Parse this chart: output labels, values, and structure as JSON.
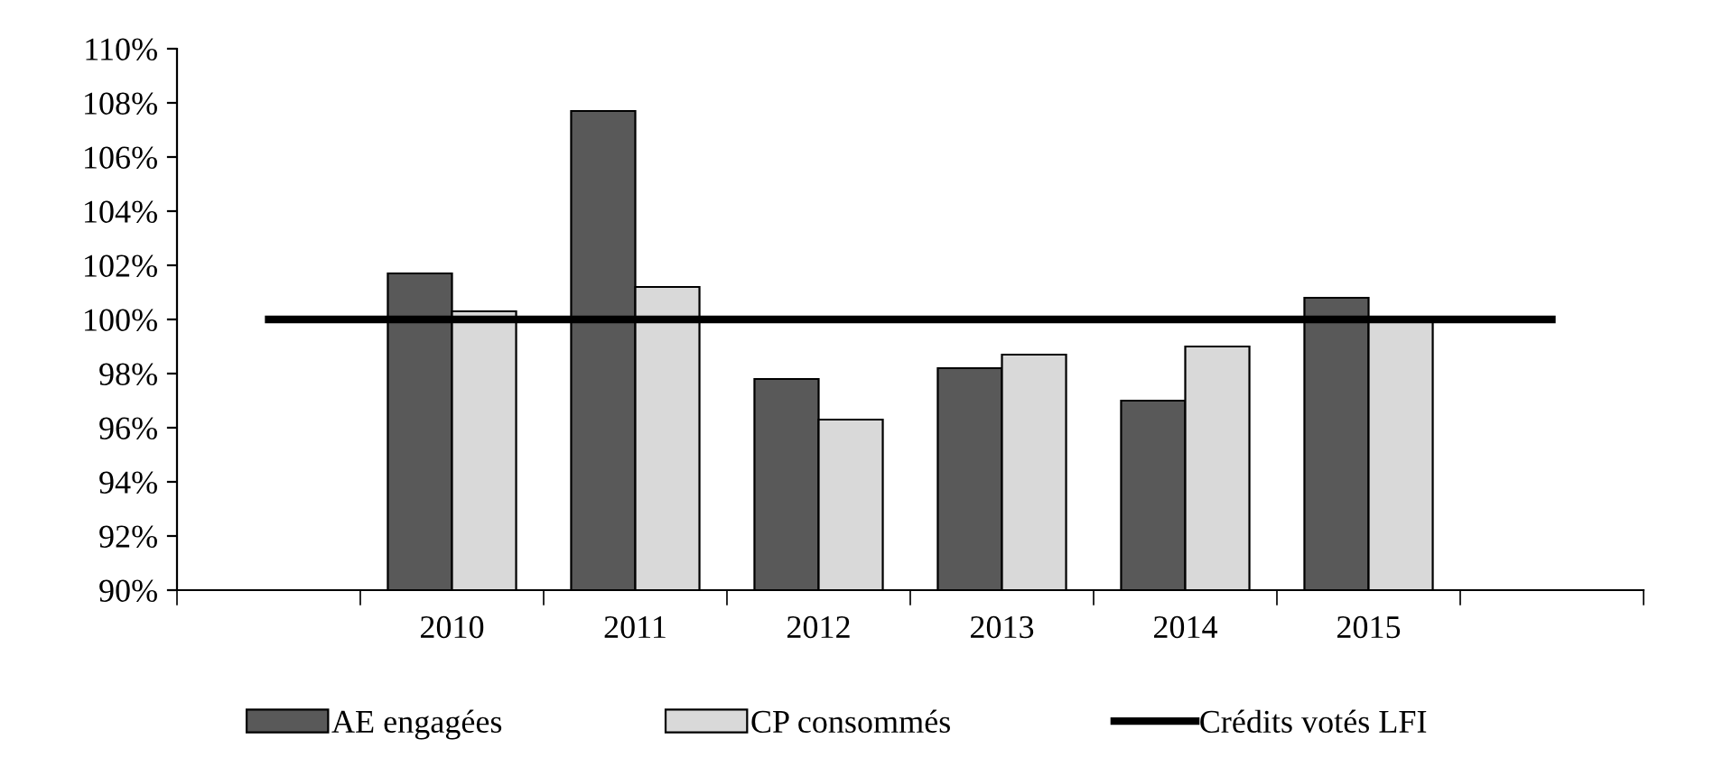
{
  "chart_data": {
    "type": "bar",
    "categories": [
      null,
      "2010",
      "2011",
      "2012",
      "2013",
      "2014",
      "2015",
      null
    ],
    "series": [
      {
        "name": "AE engagées",
        "color": "#595959",
        "values": [
          null,
          101.7,
          107.7,
          97.8,
          98.2,
          97.0,
          100.8,
          null
        ]
      },
      {
        "name": "CP consommés",
        "color": "#d9d9d9",
        "values": [
          null,
          100.3,
          101.2,
          96.3,
          98.7,
          99.0,
          100.0,
          null
        ]
      },
      {
        "name": "Crédits votés LFI",
        "type": "line",
        "color": "#000000",
        "values": [
          100,
          100,
          100,
          100,
          100,
          100,
          100,
          100
        ]
      }
    ],
    "ylim": [
      90,
      110
    ],
    "yticks": [
      {
        "value": 90,
        "label": "90%"
      },
      {
        "value": 92,
        "label": "92%"
      },
      {
        "value": 94,
        "label": "94%"
      },
      {
        "value": 96,
        "label": "96%"
      },
      {
        "value": 98,
        "label": "98%"
      },
      {
        "value": 100,
        "label": "100%"
      },
      {
        "value": 102,
        "label": "102%"
      },
      {
        "value": 104,
        "label": "104%"
      },
      {
        "value": 106,
        "label": "106%"
      },
      {
        "value": 108,
        "label": "108%"
      },
      {
        "value": 110,
        "label": "110%"
      }
    ],
    "grid": false,
    "legend": "bottom"
  }
}
